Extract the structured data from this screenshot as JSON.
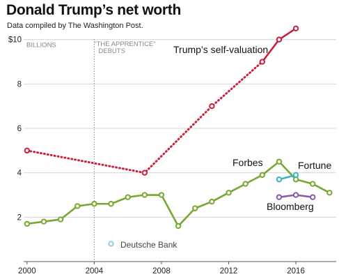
{
  "title": "Donald Trump’s net worth",
  "subtitle": "Data compiled by The Washington Post.",
  "chart_data": {
    "type": "line",
    "title": "Donald Trump’s net worth",
    "subtitle": "Data compiled by The Washington Post.",
    "unit_label": "BILLIONS",
    "xlabel": "",
    "ylabel": "",
    "xlim": [
      1999.8,
      2018.4
    ],
    "ylim": [
      0,
      10.4
    ],
    "x_ticks": [
      2000,
      2004,
      2008,
      2012,
      2016
    ],
    "y_ticks": [
      {
        "value": 10,
        "label": "$10"
      },
      {
        "value": 8,
        "label": "8"
      },
      {
        "value": 6,
        "label": "6"
      },
      {
        "value": 4,
        "label": "4"
      },
      {
        "value": 2,
        "label": "2"
      }
    ],
    "grid": "horizontal",
    "annotation": {
      "x": 2004,
      "lines": [
        "“THE APPRENTICE”",
        "DEBUTS"
      ]
    },
    "series": [
      {
        "name": "Trump’s self-valuation",
        "color": "#c8203c",
        "style": "dotted-then-solid",
        "points": [
          {
            "x": 2000,
            "y": 5.0
          },
          {
            "x": 2007,
            "y": 4.0
          },
          {
            "x": 2011,
            "y": 7.0
          },
          {
            "x": 2014,
            "y": 9.0
          },
          {
            "x": 2015,
            "y": 10.0
          },
          {
            "x": 2016,
            "y": 10.5
          }
        ],
        "solid_from_x": 2014
      },
      {
        "name": "Forbes",
        "color": "#76a832",
        "style": "solid",
        "points": [
          {
            "x": 2000,
            "y": 1.7
          },
          {
            "x": 2001,
            "y": 1.8
          },
          {
            "x": 2002,
            "y": 1.9
          },
          {
            "x": 2003,
            "y": 2.5
          },
          {
            "x": 2004,
            "y": 2.6
          },
          {
            "x": 2005,
            "y": 2.6
          },
          {
            "x": 2006,
            "y": 2.9
          },
          {
            "x": 2007,
            "y": 3.0
          },
          {
            "x": 2008,
            "y": 3.0
          },
          {
            "x": 2009,
            "y": 1.6
          },
          {
            "x": 2010,
            "y": 2.4
          },
          {
            "x": 2011,
            "y": 2.7
          },
          {
            "x": 2012,
            "y": 3.1
          },
          {
            "x": 2013,
            "y": 3.5
          },
          {
            "x": 2014,
            "y": 3.9
          },
          {
            "x": 2015,
            "y": 4.5
          },
          {
            "x": 2016,
            "y": 3.7
          },
          {
            "x": 2017,
            "y": 3.5
          },
          {
            "x": 2018,
            "y": 3.1
          }
        ]
      },
      {
        "name": "Fortune",
        "color": "#3bb4c8",
        "style": "solid",
        "points": [
          {
            "x": 2015,
            "y": 3.7
          },
          {
            "x": 2016,
            "y": 3.9
          }
        ]
      },
      {
        "name": "Bloomberg",
        "color": "#8a58a8",
        "style": "solid",
        "points": [
          {
            "x": 2015,
            "y": 2.9
          },
          {
            "x": 2016,
            "y": 3.0
          },
          {
            "x": 2017,
            "y": 2.9
          }
        ]
      },
      {
        "name": "Deutsche Bank",
        "color": "#8fd0dc",
        "style": "point",
        "points": [
          {
            "x": 2005,
            "y": 0.8
          }
        ]
      }
    ]
  }
}
